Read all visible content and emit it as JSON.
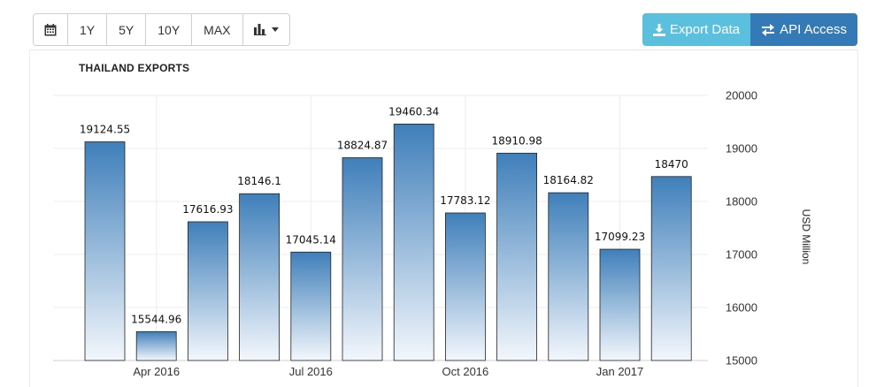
{
  "toolbar": {
    "calendar_icon": "calendar-icon",
    "ranges": [
      "1Y",
      "5Y",
      "10Y",
      "MAX"
    ],
    "chart_type_icon": "bar-chart-icon"
  },
  "actions": {
    "export_label": "Export Data",
    "export_icon": "download-icon",
    "api_label": "API Access",
    "api_icon": "exchange-arrows-icon"
  },
  "colors": {
    "bar_top": "#3f7fba",
    "bar_bottom": "#f3f7fc",
    "export_button": "#5bc0de",
    "api_button": "#337ab7"
  },
  "chart_data": {
    "type": "bar",
    "title": "THAILAND EXPORTS",
    "ylabel": "USD Million",
    "ylim": [
      15000,
      20000
    ],
    "yticks": [
      15000,
      16000,
      17000,
      18000,
      19000,
      20000
    ],
    "grid": true,
    "y_axis_side": "right",
    "values": [
      19124.55,
      15544.96,
      17616.93,
      18146.1,
      17045.14,
      18824.87,
      19460.34,
      17783.12,
      18910.98,
      18164.82,
      17099.23,
      18470
    ],
    "value_labels": [
      "19124.55",
      "15544.96",
      "17616.93",
      "18146.1",
      "17045.14",
      "18824.87",
      "19460.34",
      "17783.12",
      "18910.98",
      "18164.82",
      "17099.23",
      "18470"
    ],
    "x_tick_labels": [
      {
        "bar_index": 1,
        "label": "Apr 2016"
      },
      {
        "bar_index": 4,
        "label": "Jul 2016"
      },
      {
        "bar_index": 7,
        "label": "Oct 2016"
      },
      {
        "bar_index": 10,
        "label": "Jan 2017"
      }
    ]
  }
}
